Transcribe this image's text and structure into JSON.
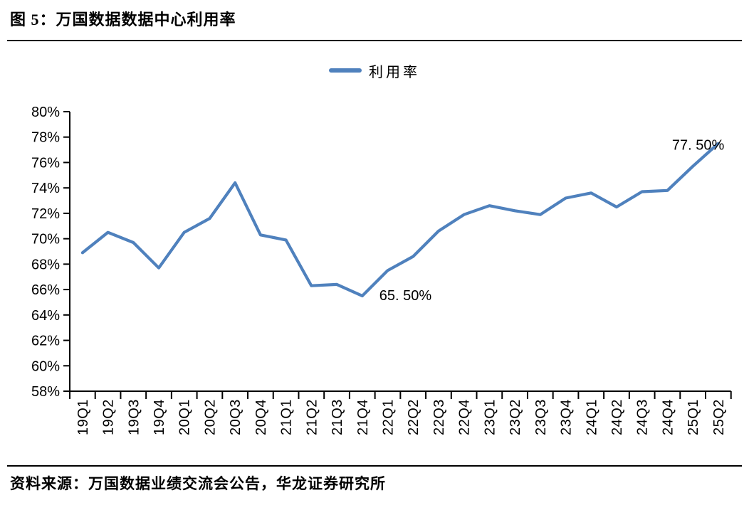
{
  "header": {
    "title": "图 5：万国数据数据中心利用率"
  },
  "legend": {
    "series_label": "利用率"
  },
  "footer": {
    "source": "资料来源：万国数据业绩交流会公告，华龙证券研究所"
  },
  "colors": {
    "accent": "#4F81BD",
    "axis": "#000000",
    "text": "#000000"
  },
  "chart_data": {
    "type": "line",
    "title": "万国数据数据中心利用率",
    "categories": [
      "19Q1",
      "19Q2",
      "19Q3",
      "19Q4",
      "20Q1",
      "20Q2",
      "20Q3",
      "20Q4",
      "21Q1",
      "21Q2",
      "21Q3",
      "21Q4",
      "22Q1",
      "22Q2",
      "22Q3",
      "22Q4",
      "23Q1",
      "23Q2",
      "23Q3",
      "23Q4",
      "24Q1",
      "24Q2",
      "24Q3",
      "24Q4",
      "25Q1",
      "25Q2"
    ],
    "series": [
      {
        "name": "利用率",
        "values": [
          68.9,
          70.5,
          69.7,
          67.7,
          70.5,
          71.6,
          74.4,
          70.3,
          69.9,
          66.3,
          66.4,
          65.5,
          67.5,
          68.6,
          70.6,
          71.9,
          72.6,
          72.2,
          71.9,
          73.2,
          73.6,
          72.5,
          73.7,
          73.8,
          75.7,
          77.5
        ]
      }
    ],
    "xlabel": "",
    "ylabel": "",
    "y_unit": "%",
    "ylim": [
      58,
      80
    ],
    "y_tick_step": 2,
    "y_tick_labels": [
      "58%",
      "60%",
      "62%",
      "64%",
      "66%",
      "68%",
      "70%",
      "72%",
      "74%",
      "76%",
      "78%",
      "80%"
    ],
    "grid": false,
    "legend_position": "top-center",
    "annotations": [
      {
        "category": "21Q4",
        "value": 65.5,
        "label": "65. 50%"
      },
      {
        "category": "25Q2",
        "value": 77.5,
        "label": "77. 50%"
      }
    ]
  }
}
